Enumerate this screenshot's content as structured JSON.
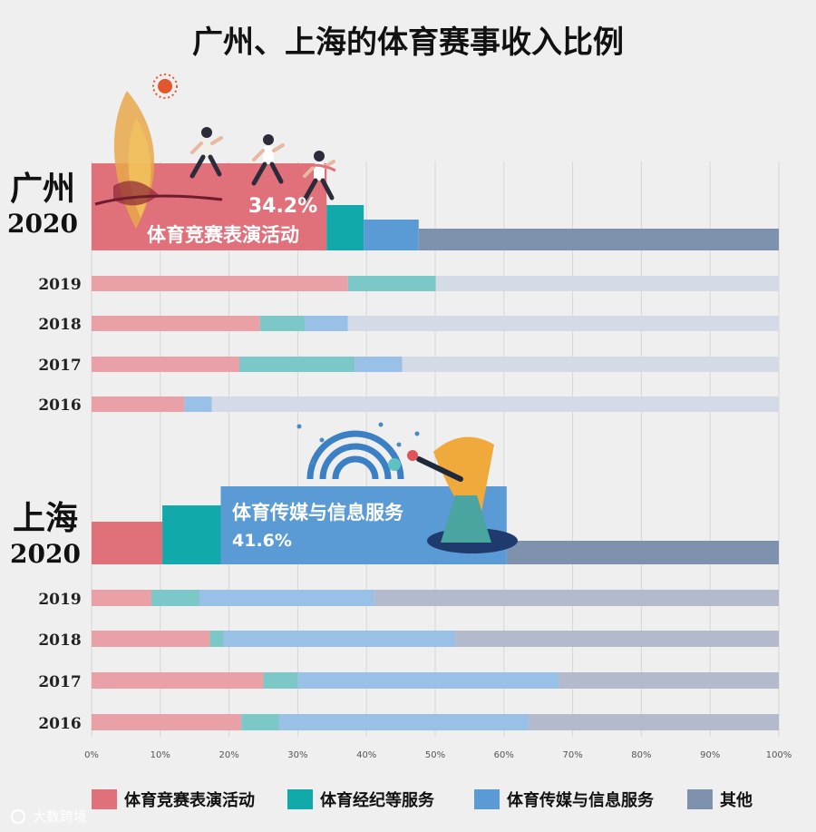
{
  "chart_data": {
    "type": "bar",
    "orientation": "horizontal",
    "stacked": true,
    "title": "广州、上海的体育赛事收入比例",
    "xlim": [
      0,
      100
    ],
    "x_ticks": [
      "0%",
      "10%",
      "20%",
      "30%",
      "40%",
      "50%",
      "60%",
      "70%",
      "80%",
      "90%",
      "100%"
    ],
    "grid": true,
    "legend_position": "bottom",
    "series_names": [
      "体育竞赛表演活动",
      "体育经纪等服务",
      "体育传媒与信息服务",
      "其他"
    ],
    "colors": {
      "s0": "#e0707a",
      "s1": "#12a9ab",
      "s2": "#5b9bd5",
      "s3": "#7f92ad",
      "s0_light": "#e9a0a6",
      "s1_light": "#7cc7c8",
      "s2_light": "#99c0e6",
      "s3_gz_light": "#d5dbe6",
      "s3_sh_light": "#b2bacb"
    },
    "groups": [
      {
        "name_line1": "广州",
        "name_line2": "2020",
        "main": {
          "year": "2020",
          "values": [
            34.2,
            5.4,
            8.0,
            52.4
          ]
        },
        "callout": {
          "value_label": "34.2%",
          "series_label": "体育竞赛表演活动"
        },
        "years": [
          {
            "year": "2019",
            "values": [
              37.3,
              12.8,
              0,
              49.9
            ]
          },
          {
            "year": "2018",
            "values": [
              24.5,
              6.5,
              6.3,
              62.7
            ]
          },
          {
            "year": "2017",
            "values": [
              21.5,
              16.8,
              6.9,
              54.8
            ]
          },
          {
            "year": "2016",
            "values": [
              13.5,
              0,
              4.0,
              82.5
            ]
          }
        ]
      },
      {
        "name_line1": "上海",
        "name_line2": "2020",
        "main": {
          "year": "2020",
          "values": [
            10.3,
            8.5,
            41.6,
            39.6
          ]
        },
        "callout": {
          "series_label": "体育传媒与信息服务",
          "value_label": "41.6%"
        },
        "years": [
          {
            "year": "2019",
            "values": [
              8.7,
              7.0,
              25.5,
              58.8
            ]
          },
          {
            "year": "2018",
            "values": [
              17.2,
              2.0,
              33.7,
              47.1
            ]
          },
          {
            "year": "2017",
            "values": [
              25.0,
              5.0,
              38.0,
              32.0
            ]
          },
          {
            "year": "2016",
            "values": [
              21.8,
              5.5,
              36.3,
              36.4
            ]
          }
        ]
      }
    ]
  },
  "watermark": "大数跨境"
}
